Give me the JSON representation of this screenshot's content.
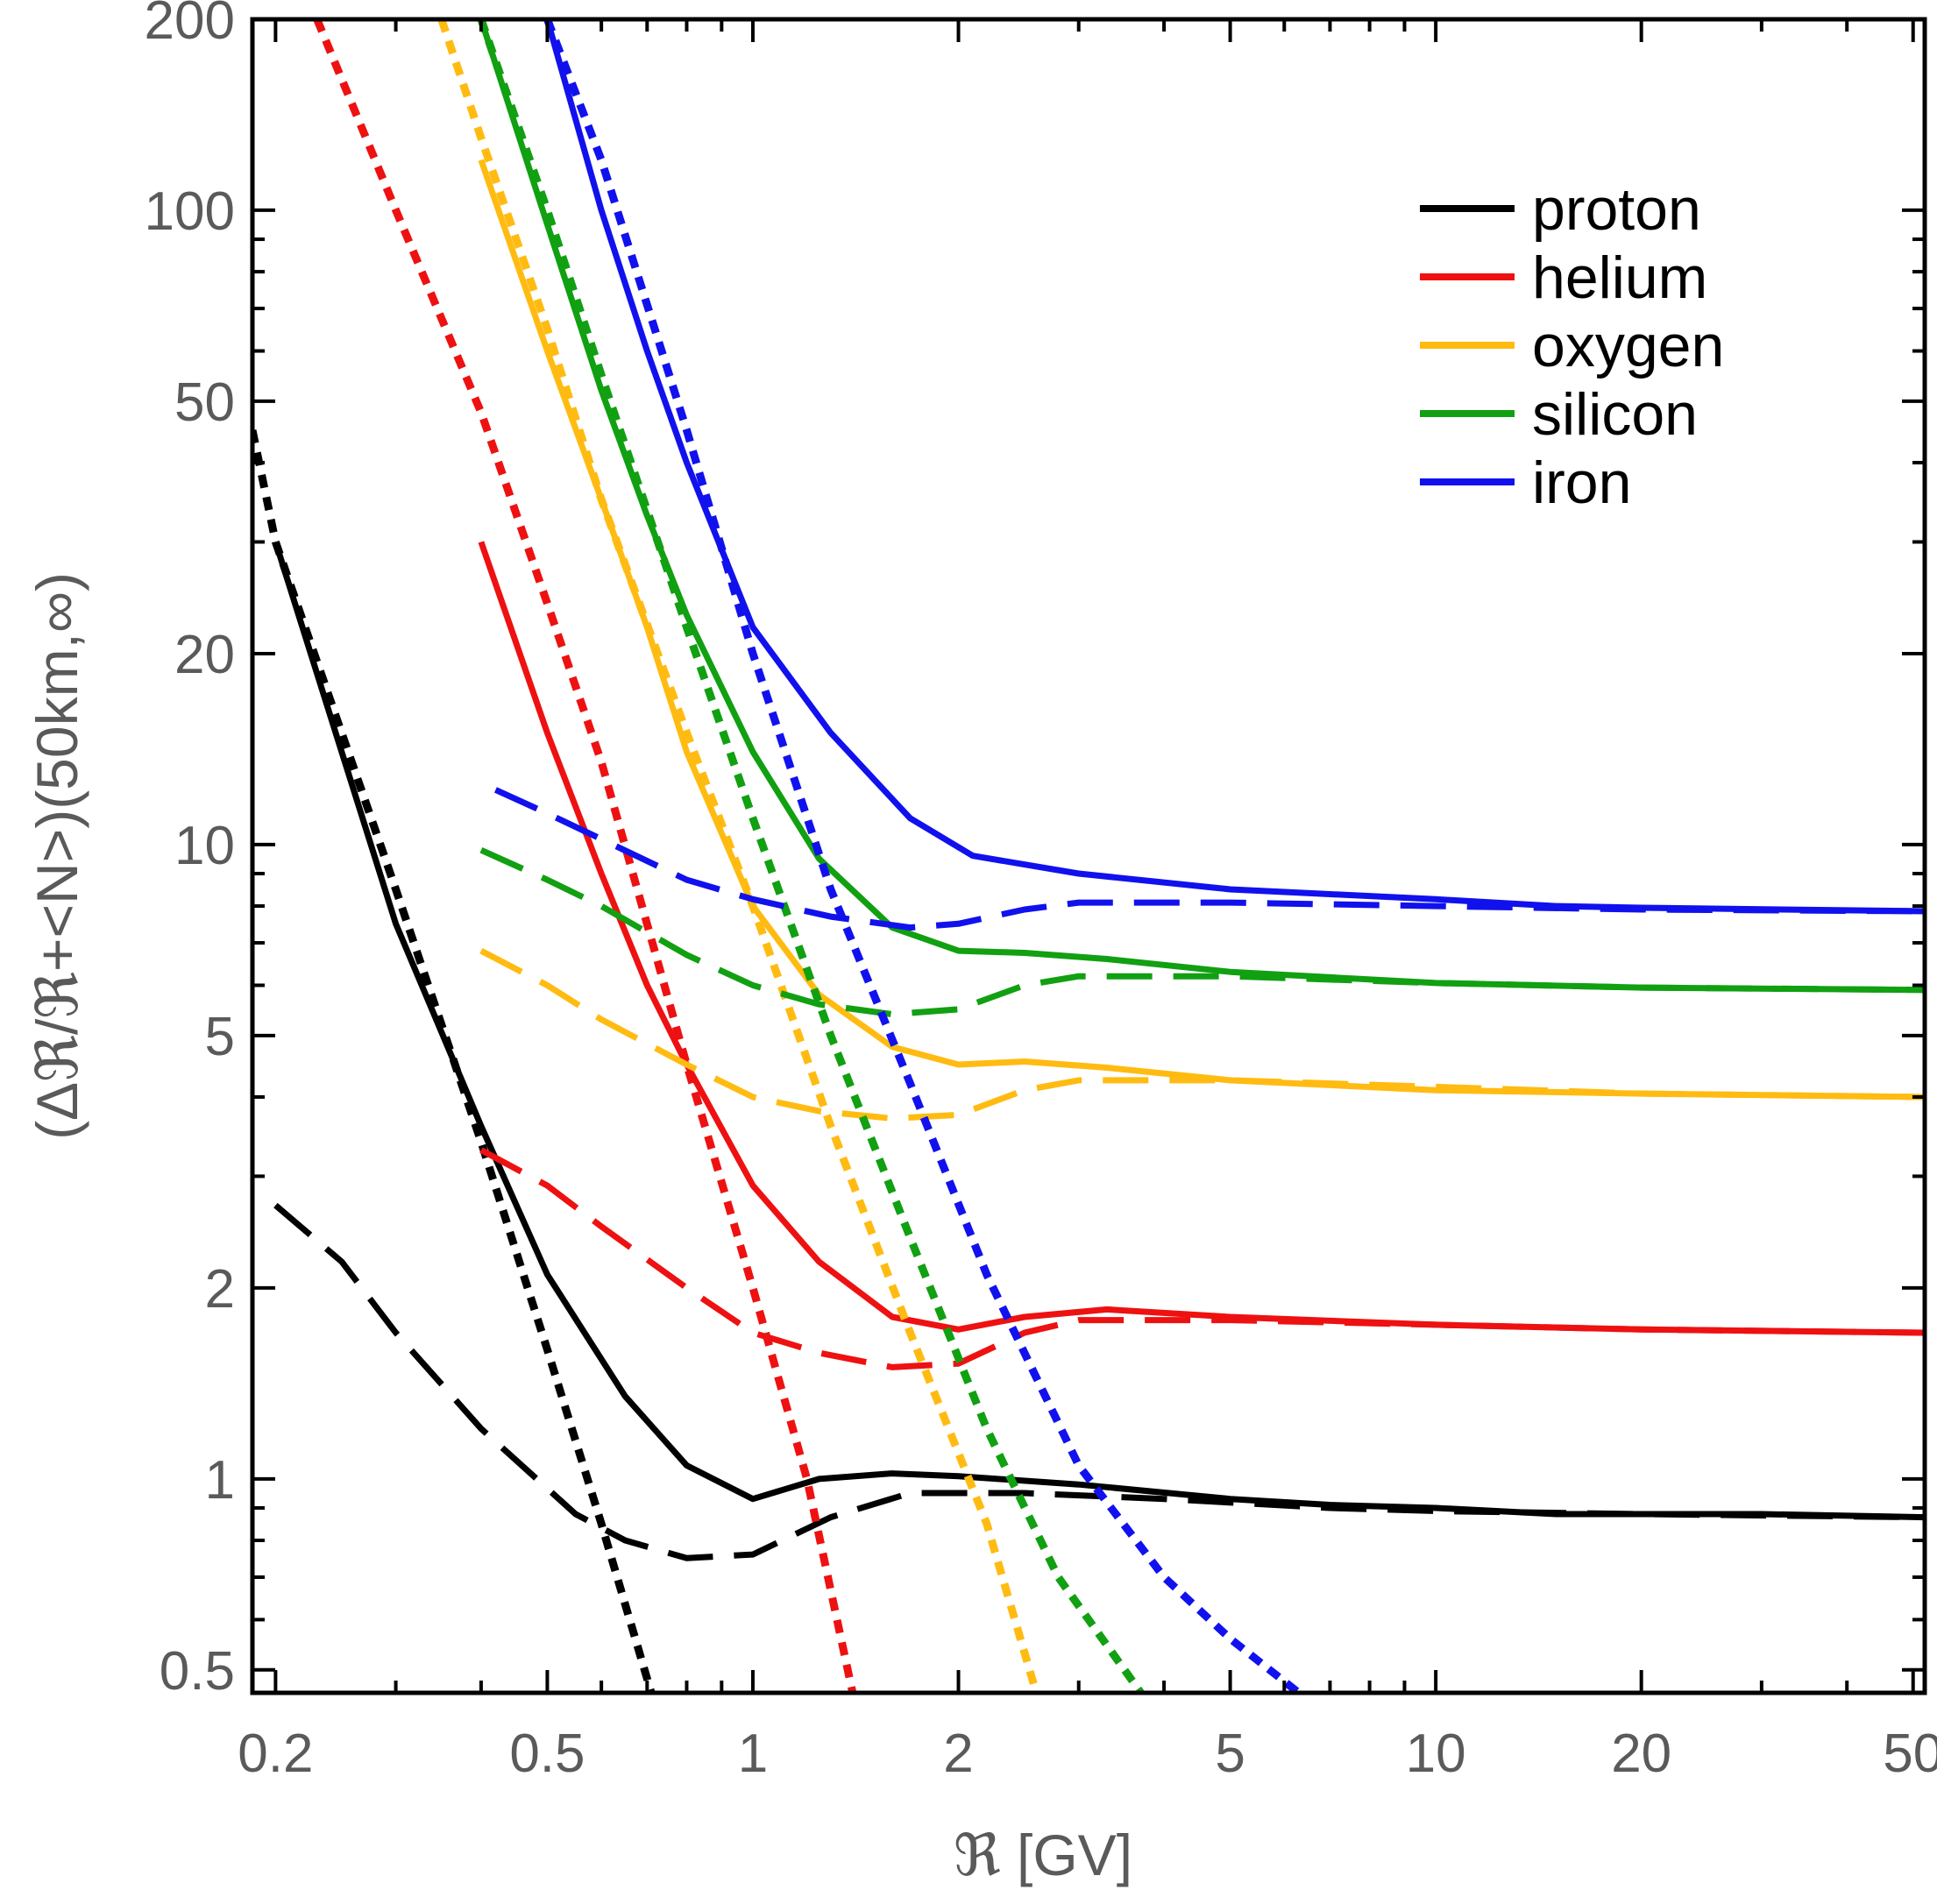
{
  "chart_data": {
    "type": "line",
    "xlabel": "ℜ [GV]",
    "ylabel": "(Δℜ/ℜ+<N>)(50km,∞)",
    "xscale": "log",
    "yscale": "log",
    "xlim": [
      0.185,
      52
    ],
    "ylim": [
      0.46,
      200
    ],
    "xticks": [
      0.2,
      0.5,
      1,
      2,
      5,
      10,
      20,
      50
    ],
    "xtick_labels": [
      "0.2",
      "0.5",
      "1",
      "2",
      "5",
      "10",
      "20",
      "50"
    ],
    "yticks": [
      0.5,
      1,
      2,
      5,
      10,
      20,
      50,
      100,
      200
    ],
    "ytick_labels": [
      "0.5",
      "1",
      "2",
      "5",
      "10",
      "20",
      "50",
      "100",
      "200"
    ],
    "grid": false,
    "legend_position": "top-right",
    "legend": [
      "proton",
      "helium",
      "oxygen",
      "silicon",
      "iron"
    ],
    "colors": {
      "proton": "#000000",
      "helium": "#ee1111",
      "oxygen": "#ffbb11",
      "silicon": "#11a011",
      "iron": "#1111ee"
    },
    "series": [
      {
        "name": "proton",
        "style": "solid",
        "x": [
          0.2,
          0.3,
          0.4,
          0.5,
          0.65,
          0.8,
          1.0,
          1.25,
          1.6,
          2.0,
          3.0,
          5.0,
          7.0,
          10.0,
          15.0,
          20.0,
          30.0,
          52.0
        ],
        "y": [
          30,
          7.5,
          3.6,
          2.1,
          1.35,
          1.05,
          0.93,
          1.0,
          1.02,
          1.01,
          0.98,
          0.93,
          0.91,
          0.9,
          0.88,
          0.88,
          0.88,
          0.87
        ]
      },
      {
        "name": "proton",
        "style": "dashed",
        "x": [
          0.2,
          0.25,
          0.3,
          0.4,
          0.55,
          0.65,
          0.8,
          1.0,
          1.3,
          1.7,
          2.5,
          4.0,
          7.0,
          10.0,
          20.0,
          52.0
        ],
        "y": [
          2.7,
          2.2,
          1.7,
          1.2,
          0.88,
          0.8,
          0.75,
          0.76,
          0.87,
          0.95,
          0.95,
          0.93,
          0.9,
          0.89,
          0.88,
          0.87
        ]
      },
      {
        "name": "proton",
        "style": "dotted",
        "x": [
          0.185,
          0.2,
          0.3,
          0.4,
          0.5,
          0.6,
          0.71
        ],
        "y": [
          45,
          30,
          8.5,
          3.4,
          1.6,
          0.85,
          0.46
        ]
      },
      {
        "name": "helium",
        "style": "solid",
        "x": [
          0.4,
          0.5,
          0.6,
          0.7,
          0.8,
          1.0,
          1.25,
          1.6,
          2.0,
          2.5,
          3.3,
          5.0,
          10.0,
          20.0,
          52.0
        ],
        "y": [
          30,
          15,
          9.0,
          6.0,
          4.5,
          2.9,
          2.2,
          1.8,
          1.72,
          1.8,
          1.85,
          1.8,
          1.75,
          1.72,
          1.7
        ]
      },
      {
        "name": "helium",
        "style": "dashed",
        "x": [
          0.4,
          0.5,
          0.6,
          0.8,
          1.0,
          1.25,
          1.6,
          2.0,
          2.5,
          3.0,
          5.0,
          10.0,
          20.0,
          52.0
        ],
        "y": [
          3.3,
          2.9,
          2.5,
          2.0,
          1.7,
          1.58,
          1.5,
          1.52,
          1.7,
          1.78,
          1.78,
          1.75,
          1.72,
          1.7
        ]
      },
      {
        "name": "helium",
        "style": "dotted",
        "x": [
          0.23,
          0.3,
          0.4,
          0.5,
          0.6,
          0.8,
          1.0,
          1.2,
          1.4
        ],
        "y": [
          200,
          100,
          48,
          24,
          13.5,
          4.5,
          2.0,
          1.0,
          0.46
        ]
      },
      {
        "name": "oxygen",
        "style": "solid",
        "x": [
          0.4,
          0.5,
          0.6,
          0.7,
          0.8,
          1.0,
          1.25,
          1.6,
          2.0,
          2.5,
          3.3,
          5.0,
          10.0,
          20.0,
          52.0
        ],
        "y": [
          120,
          60,
          35,
          22,
          14,
          8.0,
          5.8,
          4.8,
          4.5,
          4.55,
          4.45,
          4.25,
          4.1,
          4.05,
          4.0
        ]
      },
      {
        "name": "oxygen",
        "style": "dashed",
        "x": [
          0.4,
          0.5,
          0.6,
          0.8,
          1.0,
          1.25,
          1.6,
          2.0,
          2.5,
          3.0,
          5.0,
          10.0,
          20.0,
          52.0
        ],
        "y": [
          6.8,
          6.0,
          5.3,
          4.5,
          4.0,
          3.8,
          3.7,
          3.75,
          4.1,
          4.25,
          4.25,
          4.15,
          4.05,
          4.0
        ]
      },
      {
        "name": "oxygen",
        "style": "dotted",
        "x": [
          0.35,
          0.4,
          0.5,
          0.6,
          0.8,
          1.0,
          1.3,
          1.7,
          2.2,
          2.6
        ],
        "y": [
          200,
          130,
          65,
          35,
          15,
          8.0,
          3.6,
          1.7,
          0.85,
          0.46
        ]
      },
      {
        "name": "silicon",
        "style": "solid",
        "x": [
          0.4,
          0.5,
          0.6,
          0.7,
          0.8,
          1.0,
          1.25,
          1.6,
          2.0,
          2.5,
          3.3,
          5.0,
          10.0,
          20.0,
          52.0
        ],
        "y": [
          200,
          95,
          52,
          33,
          23,
          14,
          9.5,
          7.4,
          6.8,
          6.75,
          6.6,
          6.3,
          6.05,
          5.95,
          5.9
        ]
      },
      {
        "name": "silicon",
        "style": "dashed",
        "x": [
          0.4,
          0.5,
          0.6,
          0.8,
          1.0,
          1.25,
          1.6,
          2.0,
          2.5,
          3.0,
          5.0,
          10.0,
          20.0,
          52.0
        ],
        "y": [
          9.8,
          8.8,
          8.0,
          6.7,
          6.0,
          5.6,
          5.4,
          5.5,
          6.0,
          6.2,
          6.2,
          6.05,
          5.95,
          5.9
        ]
      },
      {
        "name": "silicon",
        "style": "dotted",
        "x": [
          0.4,
          0.5,
          0.6,
          0.8,
          1.0,
          1.3,
          1.7,
          2.2,
          2.8,
          3.7
        ],
        "y": [
          200,
          100,
          55,
          22,
          11,
          5.0,
          2.4,
          1.2,
          0.7,
          0.46
        ]
      },
      {
        "name": "iron",
        "style": "solid",
        "x": [
          0.5,
          0.6,
          0.7,
          0.8,
          1.0,
          1.3,
          1.7,
          2.1,
          3.0,
          5.0,
          10.0,
          15.0,
          20.0,
          52.0
        ],
        "y": [
          200,
          100,
          60,
          40,
          22,
          15,
          11,
          9.6,
          9.0,
          8.5,
          8.2,
          8.0,
          7.95,
          7.85
        ]
      },
      {
        "name": "iron",
        "style": "dashed",
        "x": [
          0.42,
          0.5,
          0.6,
          0.8,
          1.0,
          1.3,
          1.7,
          2.0,
          2.5,
          3.0,
          5.0,
          10.0,
          20.0,
          52.0
        ],
        "y": [
          12.2,
          11.2,
          10.2,
          8.8,
          8.2,
          7.7,
          7.4,
          7.5,
          7.9,
          8.1,
          8.1,
          8.0,
          7.9,
          7.85
        ]
      },
      {
        "name": "iron",
        "style": "dotted",
        "x": [
          0.5,
          0.6,
          0.8,
          1.0,
          1.3,
          1.7,
          2.2,
          3.0,
          4.0,
          5.0,
          6.3
        ],
        "y": [
          200,
          120,
          45,
          20,
          8.5,
          4.2,
          2.1,
          1.05,
          0.7,
          0.56,
          0.46
        ]
      }
    ]
  }
}
